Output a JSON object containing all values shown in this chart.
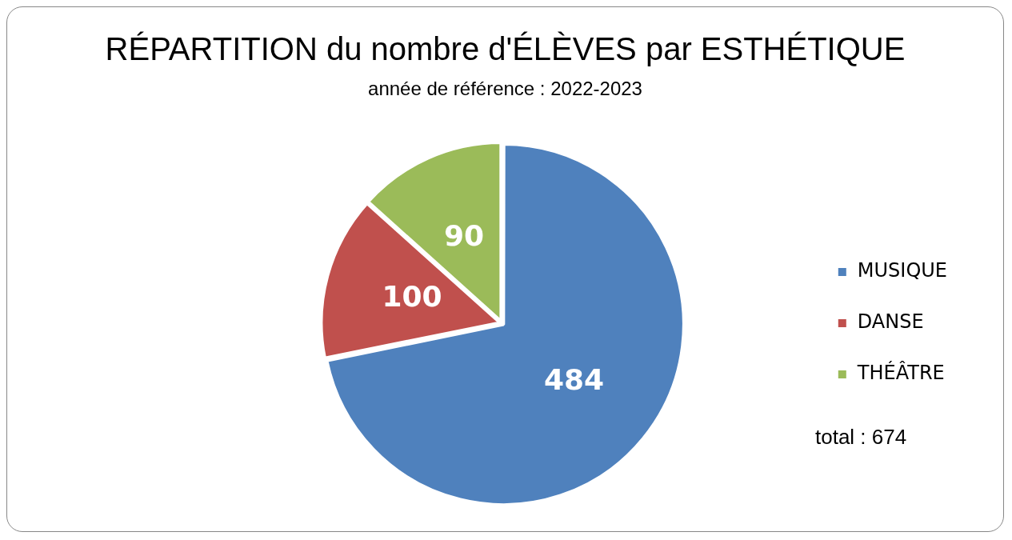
{
  "chart_data": {
    "type": "pie",
    "title": "RÉPARTITION du nombre d'ÉLÈVES par ESTHÉTIQUE",
    "subtitle": "année de référence : 2022-2023",
    "categories": [
      "MUSIQUE",
      "DANSE",
      "THÉÂTRE"
    ],
    "values": [
      484,
      100,
      90
    ],
    "colors": [
      "#4f81bd",
      "#c0504d",
      "#9bbb59"
    ],
    "data_labels": true,
    "legend": "right",
    "annotations": [
      "total  : 674"
    ]
  }
}
